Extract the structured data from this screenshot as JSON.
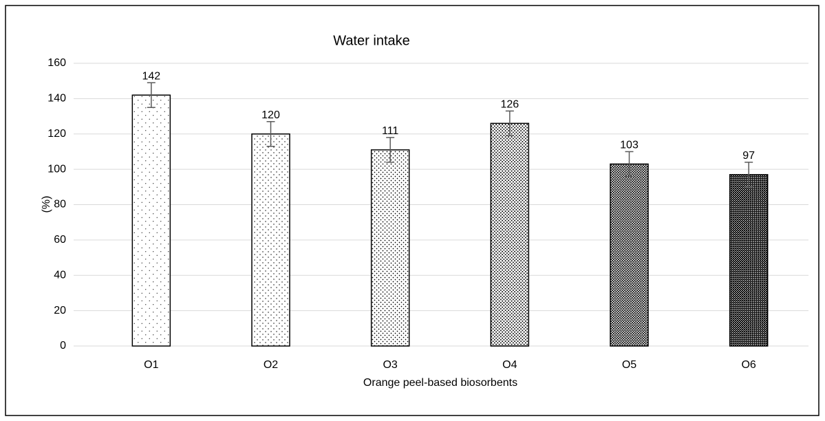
{
  "chart_data": {
    "type": "bar",
    "title": "Water intake",
    "x_label": "Orange peel-based biosorbents",
    "y_label": "(%)",
    "categories": [
      "O1",
      "O2",
      "O3",
      "O4",
      "O5",
      "O6"
    ],
    "values": [
      142,
      120,
      111,
      126,
      103,
      97
    ],
    "errors": [
      7,
      7,
      7,
      7,
      7,
      7
    ],
    "color": "#000000",
    "ylim": [
      0,
      160
    ],
    "yticks": [
      0,
      20,
      40,
      60,
      80,
      100,
      120,
      140,
      160
    ],
    "grid": true
  }
}
